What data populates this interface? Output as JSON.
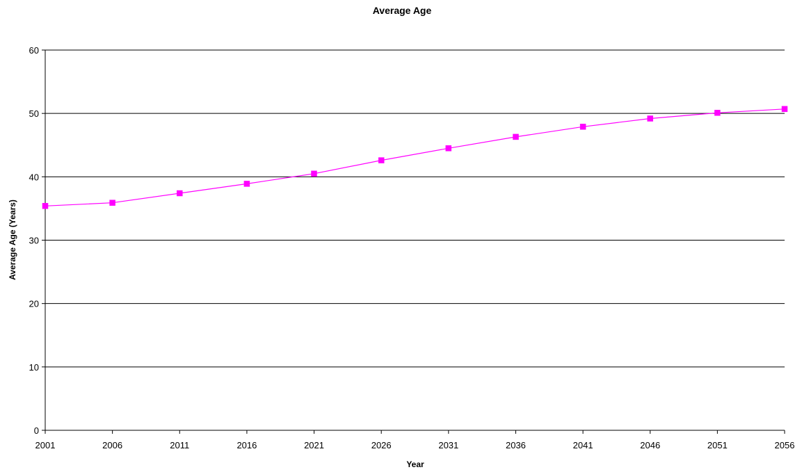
{
  "chart_data": {
    "type": "line",
    "title": "Average Age",
    "xlabel": "Year",
    "ylabel": "Average Age (Years)",
    "x": [
      "2001",
      "2006",
      "2011",
      "2016",
      "2021",
      "2026",
      "2031",
      "2036",
      "2041",
      "2046",
      "2051",
      "2056"
    ],
    "ylim": [
      0,
      60
    ],
    "yticks": [
      "0",
      "10",
      "20",
      "30",
      "40",
      "50",
      "60"
    ],
    "grid": "horizontal",
    "legend": "none",
    "series": [
      {
        "values": [
          35.4,
          35.9,
          37.4,
          38.9,
          40.5,
          42.6,
          44.5,
          46.3,
          47.9,
          49.2,
          50.1,
          50.7
        ],
        "color": "#ff00ff",
        "marker": "square"
      }
    ]
  }
}
